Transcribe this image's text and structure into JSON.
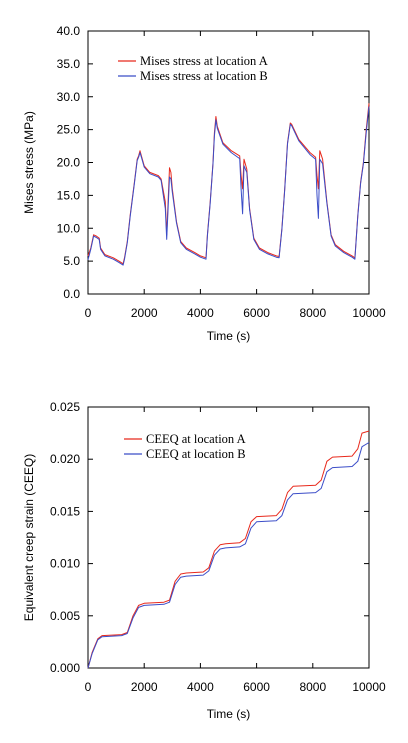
{
  "chart_data": [
    {
      "type": "line",
      "xlabel": "Time (s)",
      "ylabel": "Mises stress (MPa)",
      "xlim": [
        0,
        10000
      ],
      "ylim": [
        0,
        40
      ],
      "xticks": [
        "0",
        "2000",
        "4000",
        "6000",
        "8000",
        "10000"
      ],
      "yticks": [
        "0.0",
        "5.0",
        "10.0",
        "15.0",
        "20.0",
        "25.0",
        "30.0",
        "35.0",
        "40.0"
      ],
      "legend_position": "top-left",
      "grid": false,
      "series": [
        {
          "name": "Mises stress at location A",
          "color": "#e8291c",
          "points": [
            [
              0,
              5.8
            ],
            [
              100,
              7.0
            ],
            [
              200,
              9.0
            ],
            [
              300,
              8.8
            ],
            [
              400,
              8.5
            ],
            [
              450,
              7.0
            ],
            [
              600,
              6.0
            ],
            [
              900,
              5.5
            ],
            [
              1100,
              5.0
            ],
            [
              1250,
              4.6
            ],
            [
              1300,
              5.5
            ],
            [
              1400,
              8.0
            ],
            [
              1500,
              12.0
            ],
            [
              1650,
              17.0
            ],
            [
              1750,
              20.5
            ],
            [
              1800,
              21.0
            ],
            [
              1850,
              21.8
            ],
            [
              1900,
              21.0
            ],
            [
              2000,
              19.5
            ],
            [
              2200,
              18.5
            ],
            [
              2500,
              18.0
            ],
            [
              2600,
              17.5
            ],
            [
              2750,
              14.0
            ],
            [
              2800,
              9.0
            ],
            [
              2850,
              14.0
            ],
            [
              2900,
              19.2
            ],
            [
              2950,
              18.5
            ],
            [
              3000,
              16.0
            ],
            [
              3150,
              11.0
            ],
            [
              3300,
              8.0
            ],
            [
              3500,
              7.0
            ],
            [
              3800,
              6.3
            ],
            [
              4000,
              5.8
            ],
            [
              4200,
              5.5
            ],
            [
              4250,
              9.0
            ],
            [
              4350,
              14.0
            ],
            [
              4450,
              20.0
            ],
            [
              4500,
              24.5
            ],
            [
              4550,
              27.0
            ],
            [
              4600,
              25.5
            ],
            [
              4800,
              23.0
            ],
            [
              5100,
              21.8
            ],
            [
              5400,
              21.0
            ],
            [
              5450,
              18.0
            ],
            [
              5500,
              16.0
            ],
            [
              5550,
              20.5
            ],
            [
              5650,
              19.0
            ],
            [
              5750,
              13.0
            ],
            [
              5900,
              8.5
            ],
            [
              6100,
              7.0
            ],
            [
              6400,
              6.3
            ],
            [
              6700,
              5.8
            ],
            [
              6800,
              5.7
            ],
            [
              6900,
              10.0
            ],
            [
              7000,
              16.0
            ],
            [
              7100,
              23.0
            ],
            [
              7200,
              26.0
            ],
            [
              7250,
              25.8
            ],
            [
              7500,
              23.5
            ],
            [
              7900,
              21.5
            ],
            [
              8100,
              20.8
            ],
            [
              8150,
              18.0
            ],
            [
              8200,
              16.0
            ],
            [
              8250,
              21.8
            ],
            [
              8350,
              20.5
            ],
            [
              8500,
              14.0
            ],
            [
              8650,
              9.0
            ],
            [
              8800,
              7.5
            ],
            [
              9100,
              6.5
            ],
            [
              9400,
              5.8
            ],
            [
              9500,
              5.5
            ],
            [
              9600,
              12.0
            ],
            [
              9700,
              17.0
            ],
            [
              9800,
              20.0
            ],
            [
              9900,
              25.0
            ],
            [
              10000,
              29.0
            ]
          ]
        },
        {
          "name": "Mises stress at location B",
          "color": "#3b4dc8",
          "points": [
            [
              0,
              5.2
            ],
            [
              100,
              6.8
            ],
            [
              200,
              8.8
            ],
            [
              300,
              8.6
            ],
            [
              400,
              8.3
            ],
            [
              450,
              6.8
            ],
            [
              600,
              5.8
            ],
            [
              900,
              5.3
            ],
            [
              1100,
              4.8
            ],
            [
              1250,
              4.4
            ],
            [
              1300,
              5.3
            ],
            [
              1400,
              7.8
            ],
            [
              1500,
              11.8
            ],
            [
              1650,
              16.8
            ],
            [
              1750,
              20.3
            ],
            [
              1800,
              20.8
            ],
            [
              1850,
              21.5
            ],
            [
              1900,
              20.8
            ],
            [
              2000,
              19.3
            ],
            [
              2200,
              18.3
            ],
            [
              2500,
              17.8
            ],
            [
              2600,
              17.3
            ],
            [
              2750,
              13.0
            ],
            [
              2800,
              8.3
            ],
            [
              2850,
              13.0
            ],
            [
              2900,
              17.8
            ],
            [
              2950,
              17.5
            ],
            [
              3000,
              15.5
            ],
            [
              3150,
              10.8
            ],
            [
              3300,
              7.8
            ],
            [
              3500,
              6.8
            ],
            [
              3800,
              6.1
            ],
            [
              4000,
              5.6
            ],
            [
              4200,
              5.3
            ],
            [
              4250,
              8.8
            ],
            [
              4350,
              13.8
            ],
            [
              4450,
              19.8
            ],
            [
              4500,
              24.0
            ],
            [
              4550,
              26.5
            ],
            [
              4600,
              25.2
            ],
            [
              4800,
              22.8
            ],
            [
              5100,
              21.5
            ],
            [
              5400,
              20.6
            ],
            [
              5450,
              16.0
            ],
            [
              5500,
              12.2
            ],
            [
              5550,
              19.5
            ],
            [
              5650,
              18.5
            ],
            [
              5750,
              12.8
            ],
            [
              5900,
              8.3
            ],
            [
              6100,
              6.8
            ],
            [
              6400,
              6.1
            ],
            [
              6700,
              5.6
            ],
            [
              6800,
              5.5
            ],
            [
              6900,
              9.8
            ],
            [
              7000,
              15.8
            ],
            [
              7100,
              22.8
            ],
            [
              7200,
              25.8
            ],
            [
              7250,
              25.6
            ],
            [
              7500,
              23.3
            ],
            [
              7900,
              21.2
            ],
            [
              8100,
              20.5
            ],
            [
              8150,
              15.0
            ],
            [
              8200,
              11.5
            ],
            [
              8250,
              20.5
            ],
            [
              8350,
              19.8
            ],
            [
              8500,
              13.8
            ],
            [
              8650,
              8.8
            ],
            [
              8800,
              7.3
            ],
            [
              9100,
              6.3
            ],
            [
              9400,
              5.6
            ],
            [
              9500,
              5.3
            ],
            [
              9600,
              11.8
            ],
            [
              9700,
              16.8
            ],
            [
              9800,
              19.8
            ],
            [
              9900,
              24.5
            ],
            [
              10000,
              28.5
            ]
          ]
        }
      ]
    },
    {
      "type": "line",
      "xlabel": "Time (s)",
      "ylabel": "Equivalent creep strain (CEEQ)",
      "xlim": [
        0,
        10000
      ],
      "ylim": [
        0,
        0.025
      ],
      "xticks": [
        "0",
        "2000",
        "4000",
        "6000",
        "8000",
        "10000"
      ],
      "yticks": [
        "0.000",
        "0.005",
        "0.010",
        "0.015",
        "0.020",
        "0.025"
      ],
      "legend_position": "top-left",
      "grid": false,
      "series": [
        {
          "name": "CEEQ at location A",
          "color": "#e8291c",
          "points": [
            [
              0,
              0.0
            ],
            [
              150,
              0.0015
            ],
            [
              350,
              0.0028
            ],
            [
              500,
              0.0031
            ],
            [
              1200,
              0.0032
            ],
            [
              1400,
              0.0034
            ],
            [
              1600,
              0.005
            ],
            [
              1800,
              0.006
            ],
            [
              2000,
              0.0062
            ],
            [
              2700,
              0.0063
            ],
            [
              2900,
              0.0065
            ],
            [
              3100,
              0.0083
            ],
            [
              3300,
              0.009
            ],
            [
              3500,
              0.0091
            ],
            [
              4100,
              0.0092
            ],
            [
              4300,
              0.0096
            ],
            [
              4500,
              0.0112
            ],
            [
              4700,
              0.0118
            ],
            [
              4900,
              0.0119
            ],
            [
              5400,
              0.012
            ],
            [
              5600,
              0.0124
            ],
            [
              5800,
              0.014
            ],
            [
              6000,
              0.0145
            ],
            [
              6700,
              0.0146
            ],
            [
              6900,
              0.0152
            ],
            [
              7100,
              0.0168
            ],
            [
              7300,
              0.0174
            ],
            [
              8100,
              0.0175
            ],
            [
              8300,
              0.018
            ],
            [
              8500,
              0.0198
            ],
            [
              8700,
              0.0202
            ],
            [
              9400,
              0.0203
            ],
            [
              9600,
              0.021
            ],
            [
              9750,
              0.0225
            ],
            [
              10000,
              0.0227
            ]
          ]
        },
        {
          "name": "CEEQ at location B",
          "color": "#3b4dc8",
          "points": [
            [
              0,
              0.0
            ],
            [
              150,
              0.0014
            ],
            [
              350,
              0.0027
            ],
            [
              500,
              0.003
            ],
            [
              1200,
              0.0031
            ],
            [
              1400,
              0.0033
            ],
            [
              1600,
              0.0048
            ],
            [
              1800,
              0.0058
            ],
            [
              2000,
              0.006
            ],
            [
              2700,
              0.0061
            ],
            [
              2900,
              0.0063
            ],
            [
              3100,
              0.008
            ],
            [
              3300,
              0.0087
            ],
            [
              3500,
              0.0088
            ],
            [
              4100,
              0.0089
            ],
            [
              4300,
              0.0093
            ],
            [
              4500,
              0.0108
            ],
            [
              4700,
              0.0114
            ],
            [
              4900,
              0.0115
            ],
            [
              5400,
              0.0116
            ],
            [
              5600,
              0.0119
            ],
            [
              5800,
              0.0134
            ],
            [
              6000,
              0.014
            ],
            [
              6700,
              0.0141
            ],
            [
              6900,
              0.0146
            ],
            [
              7100,
              0.0161
            ],
            [
              7300,
              0.0167
            ],
            [
              8100,
              0.0168
            ],
            [
              8300,
              0.0172
            ],
            [
              8500,
              0.0188
            ],
            [
              8700,
              0.0192
            ],
            [
              9400,
              0.0193
            ],
            [
              9600,
              0.0198
            ],
            [
              9750,
              0.0212
            ],
            [
              10000,
              0.0216
            ]
          ]
        }
      ]
    }
  ]
}
